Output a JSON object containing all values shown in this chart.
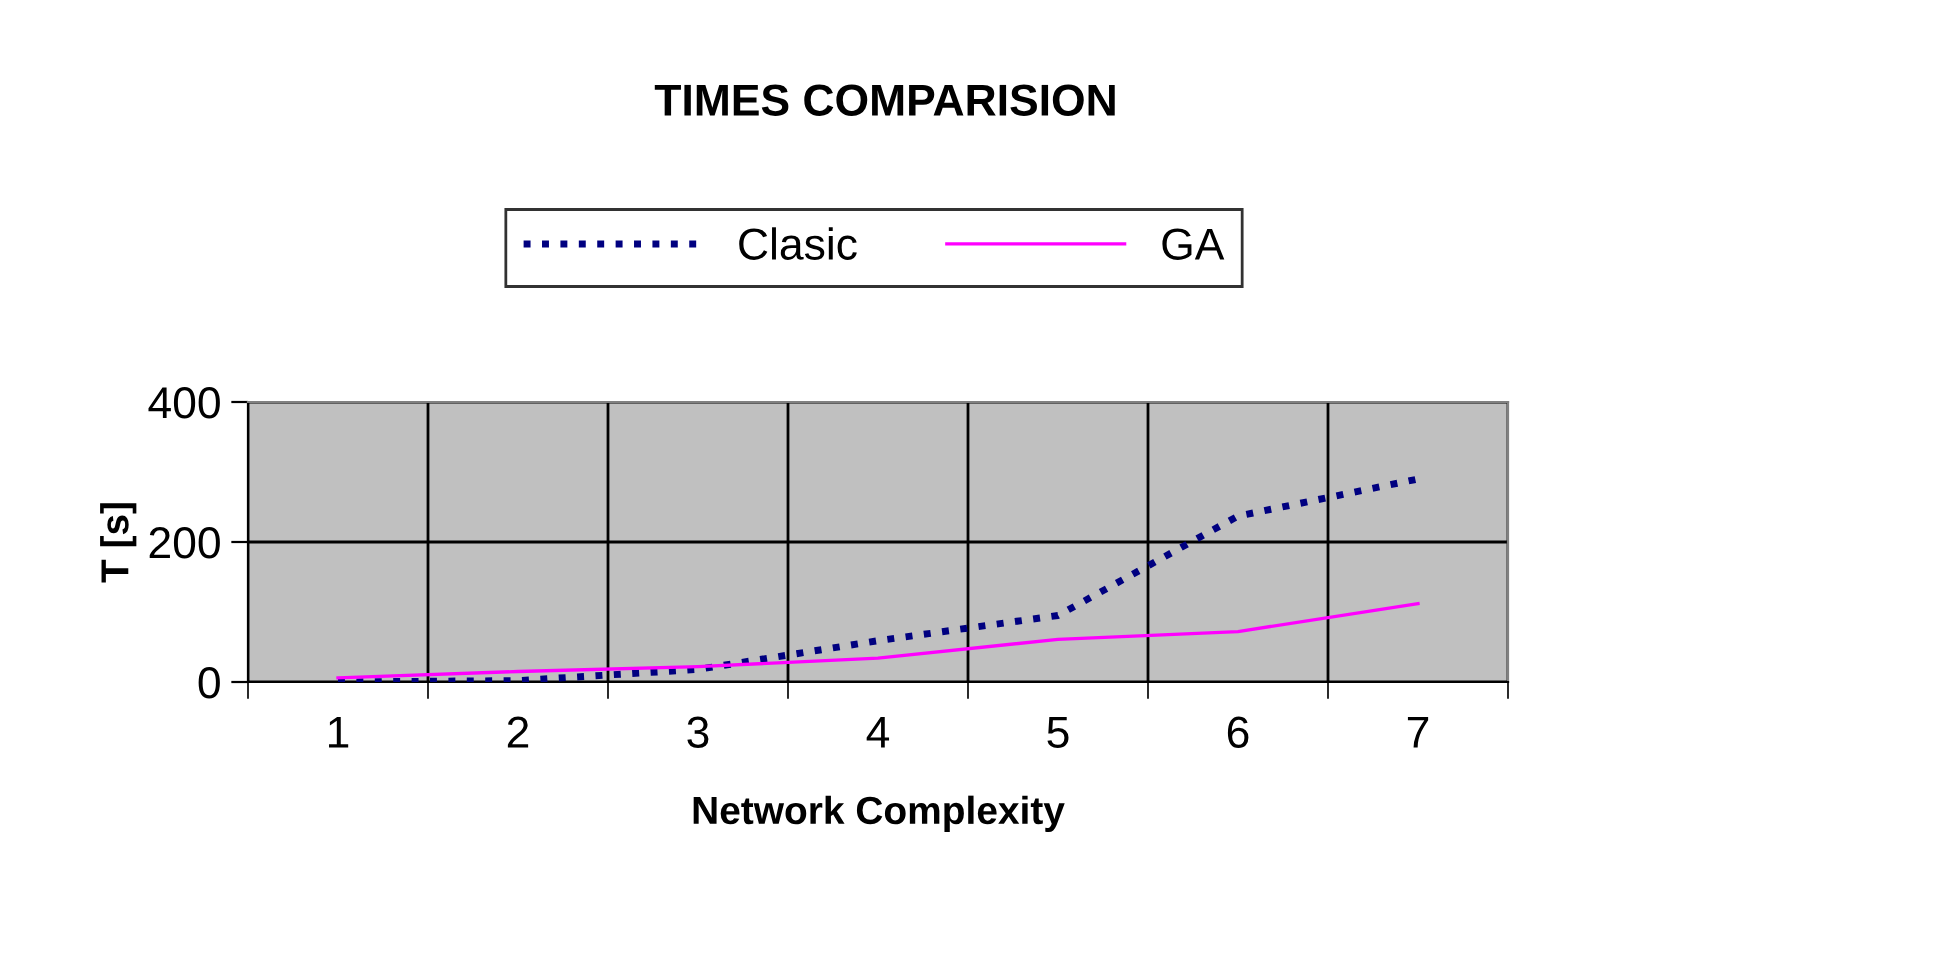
{
  "chart_data": {
    "type": "line",
    "title": "TIMES COMPARISION",
    "xlabel": "Network Complexity",
    "ylabel": "T [s]",
    "categories": [
      "1",
      "2",
      "3",
      "4",
      "5",
      "6",
      "7"
    ],
    "series": [
      {
        "name": "Clasic",
        "color": "#000080",
        "line_style": "dotted",
        "values": [
          0,
          2,
          18,
          59,
          95,
          237,
          290
        ]
      },
      {
        "name": "GA",
        "color": "#ff00ff",
        "line_style": "solid",
        "values": [
          6,
          15,
          22,
          34,
          61,
          72,
          112
        ]
      }
    ],
    "ylim": [
      0,
      400
    ],
    "yticks": [
      0,
      200,
      400
    ],
    "grid": true,
    "legend": "top",
    "marker": "none"
  }
}
